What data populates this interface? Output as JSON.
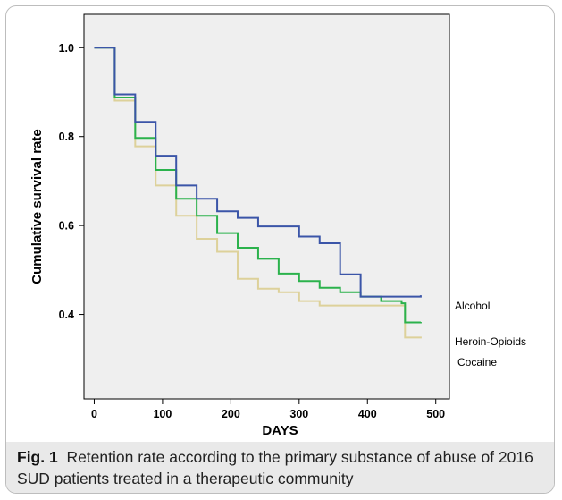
{
  "chart_data": {
    "type": "line",
    "title": "",
    "xlabel": "DAYS",
    "ylabel": "Cumulative survival rate",
    "xlim": [
      -15,
      520
    ],
    "ylim": [
      0.21,
      1.075
    ],
    "x_ticks": [
      0,
      100,
      200,
      300,
      400,
      500
    ],
    "x_tick_labels": [
      "0",
      "100",
      "200",
      "300",
      "400",
      "500"
    ],
    "y_ticks": [
      0.4,
      0.6,
      0.8,
      1.0
    ],
    "y_tick_labels": [
      "0.4",
      "0.6",
      "0.8",
      "1.0"
    ],
    "step": true,
    "grid": false,
    "plot_background": "#efefef",
    "series": [
      {
        "name": "Alcohol",
        "color": "#3b55a8",
        "points": [
          [
            0,
            1.0
          ],
          [
            30,
            0.895
          ],
          [
            60,
            0.833
          ],
          [
            90,
            0.757
          ],
          [
            120,
            0.69
          ],
          [
            150,
            0.66
          ],
          [
            180,
            0.632
          ],
          [
            210,
            0.617
          ],
          [
            240,
            0.598
          ],
          [
            300,
            0.575
          ],
          [
            330,
            0.56
          ],
          [
            360,
            0.49
          ],
          [
            390,
            0.44
          ],
          [
            478,
            0.443
          ]
        ]
      },
      {
        "name": "Heroin-Opioids",
        "color": "#2bb24c",
        "points": [
          [
            0,
            1.0
          ],
          [
            30,
            0.888
          ],
          [
            60,
            0.797
          ],
          [
            90,
            0.725
          ],
          [
            120,
            0.66
          ],
          [
            150,
            0.622
          ],
          [
            180,
            0.583
          ],
          [
            210,
            0.55
          ],
          [
            240,
            0.525
          ],
          [
            270,
            0.492
          ],
          [
            300,
            0.475
          ],
          [
            330,
            0.46
          ],
          [
            360,
            0.45
          ],
          [
            390,
            0.44
          ],
          [
            420,
            0.43
          ],
          [
            450,
            0.425
          ],
          [
            455,
            0.382
          ],
          [
            478,
            0.383
          ]
        ]
      },
      {
        "name": "Cocaine",
        "color": "#ddd19a",
        "points": [
          [
            0,
            1.0
          ],
          [
            30,
            0.881
          ],
          [
            60,
            0.778
          ],
          [
            90,
            0.69
          ],
          [
            120,
            0.622
          ],
          [
            150,
            0.57
          ],
          [
            180,
            0.541
          ],
          [
            210,
            0.48
          ],
          [
            240,
            0.458
          ],
          [
            270,
            0.45
          ],
          [
            300,
            0.43
          ],
          [
            330,
            0.42
          ],
          [
            450,
            0.42
          ],
          [
            455,
            0.348
          ],
          [
            478,
            0.35
          ]
        ]
      }
    ]
  },
  "caption": {
    "label": "Fig. 1",
    "text": "Retention rate according to the primary substance of abuse of 2016 SUD patients treated in a therapeutic community"
  }
}
